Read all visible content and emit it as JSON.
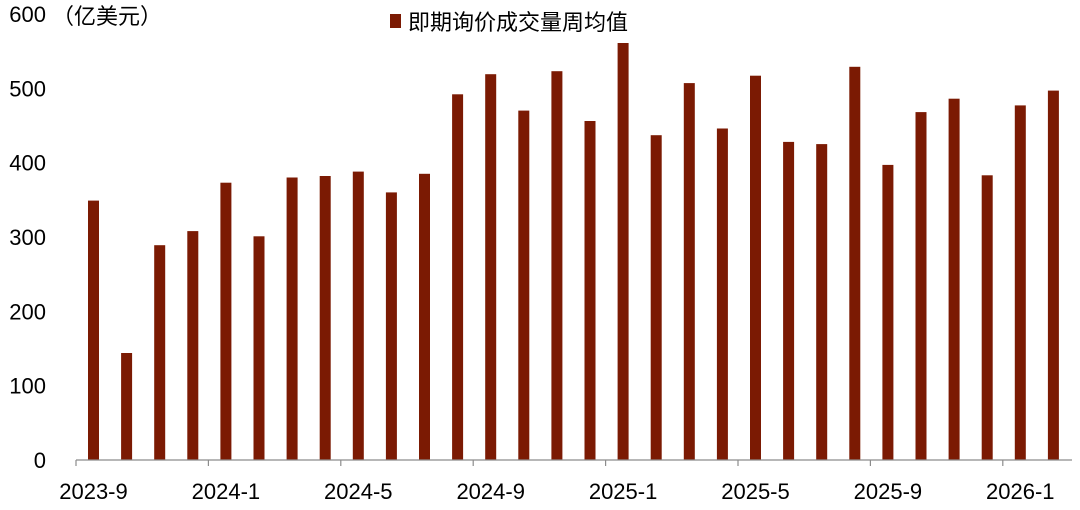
{
  "chart_data": {
    "type": "bar",
    "unit_label": "（亿美元）",
    "series": [
      {
        "name": "即期询价成交量周均值",
        "color": "#7b1a03",
        "values": [
          349,
          144,
          289,
          308,
          373,
          301,
          380,
          382,
          388,
          360,
          385,
          492,
          519,
          470,
          523,
          456,
          561,
          437,
          507,
          446,
          517,
          428,
          425,
          529,
          397,
          468,
          486,
          383,
          477,
          497
        ]
      }
    ],
    "categories": [
      "2023-9",
      "2023-10",
      "2023-11",
      "2023-12",
      "2024-1",
      "2024-2",
      "2024-3",
      "2024-4",
      "2024-5",
      "2024-6",
      "2024-7",
      "2024-8",
      "2024-9",
      "2024-10",
      "2024-11",
      "2024-12",
      "2025-1",
      "2025-2",
      "2025-3",
      "2025-4",
      "2025-5",
      "2025-6",
      "2025-7",
      "2025-8",
      "2025-9",
      "2025-10",
      "2025-11",
      "2025-12",
      "2026-1",
      "2026-2"
    ],
    "x_tick_labels": [
      "2023-9",
      "2024-1",
      "2024-5",
      "2024-9",
      "2025-1",
      "2025-5",
      "2025-9",
      "2026-1"
    ],
    "y_tick_labels": [
      "0",
      "100",
      "200",
      "300",
      "400",
      "500",
      "600"
    ],
    "ylim": [
      0,
      600
    ],
    "grid": false,
    "legend_position": "top-center"
  }
}
